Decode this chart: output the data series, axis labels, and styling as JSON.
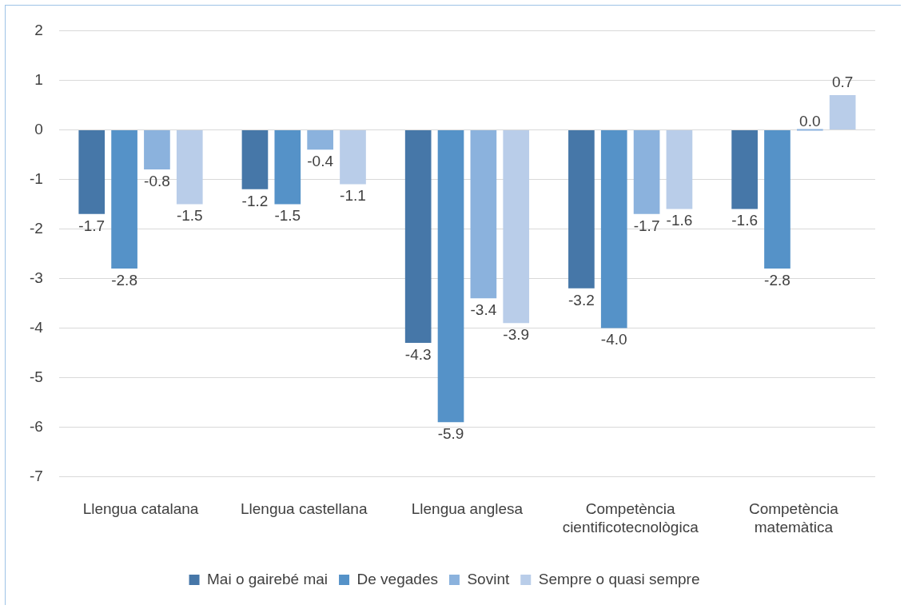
{
  "chart_data": {
    "type": "bar",
    "categories": [
      "Llengua catalana",
      "Llengua castellana",
      "Llengua anglesa",
      "Competència cientificotecnològica",
      "Competència matemàtica"
    ],
    "series": [
      {
        "name": "Mai o gairebé mai",
        "color": "#4677a8",
        "values": [
          -1.7,
          -1.2,
          -4.3,
          -3.2,
          -1.6
        ],
        "value_labels": [
          "-1.7",
          "-1.2",
          "-4.3",
          "-3.2",
          "-1.6"
        ]
      },
      {
        "name": "De vegades",
        "color": "#5592c8",
        "values": [
          -2.8,
          -1.5,
          -5.9,
          -4.0,
          -2.8
        ],
        "value_labels": [
          "-2.8",
          "-1.5",
          "-5.9",
          "-4.0",
          "-2.8"
        ]
      },
      {
        "name": "Sovint",
        "color": "#8bb2dd",
        "values": [
          -0.8,
          -0.4,
          -3.4,
          -1.7,
          0.0
        ],
        "value_labels": [
          "-0.8",
          "-0.4",
          "-3.4",
          "-1.7",
          "0.0"
        ]
      },
      {
        "name": "Sempre o quasi sempre",
        "color": "#b9cde9",
        "values": [
          -1.5,
          -1.1,
          -3.9,
          -1.6,
          0.7
        ],
        "value_labels": [
          "-1.5",
          "-1.1",
          "-3.9",
          "-1.6",
          "0.7"
        ]
      }
    ],
    "ylim": [
      -7,
      2
    ],
    "yticks": [
      -7,
      -6,
      -5,
      -4,
      -3,
      -2,
      -1,
      0,
      1,
      2
    ],
    "grid": "y",
    "legend": "bottom"
  }
}
